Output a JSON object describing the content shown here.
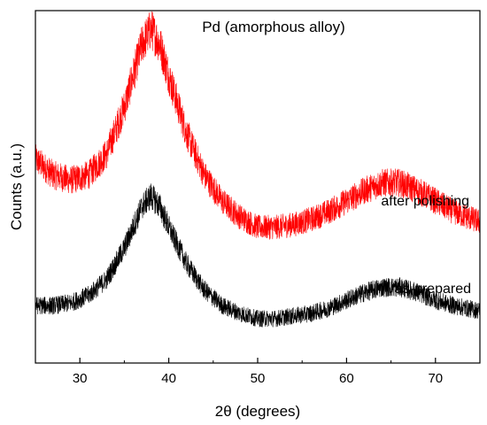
{
  "chart_data": {
    "type": "line",
    "title": "Pd (amorphous alloy)",
    "xlabel": "2θ (degrees)",
    "ylabel": "Counts (a.u.)",
    "xlim": [
      25,
      75
    ],
    "xticks": [
      30,
      40,
      50,
      60,
      70
    ],
    "y_tick_labels": false,
    "grid": false,
    "legend": "inline labels",
    "series": [
      {
        "name": "after polishing",
        "color": "#ff0000",
        "x": [
          25,
          27,
          29,
          31,
          33,
          35,
          36,
          37,
          38,
          39,
          40,
          42,
          44,
          46,
          48,
          50,
          52,
          54,
          56,
          58,
          60,
          62,
          64,
          66,
          68,
          70,
          72,
          75
        ],
        "y": [
          0.78,
          0.72,
          0.7,
          0.72,
          0.8,
          0.98,
          1.1,
          1.22,
          1.28,
          1.22,
          1.1,
          0.88,
          0.72,
          0.62,
          0.56,
          0.52,
          0.52,
          0.53,
          0.55,
          0.58,
          0.62,
          0.66,
          0.69,
          0.69,
          0.66,
          0.62,
          0.58,
          0.54
        ]
      },
      {
        "name": "as-prepared",
        "color": "#000000",
        "x": [
          25,
          27,
          29,
          31,
          33,
          35,
          36,
          37,
          38,
          39,
          40,
          42,
          44,
          46,
          48,
          50,
          52,
          54,
          56,
          58,
          60,
          62,
          64,
          66,
          68,
          70,
          72,
          75
        ],
        "y": [
          0.22,
          0.22,
          0.23,
          0.26,
          0.32,
          0.44,
          0.52,
          0.6,
          0.64,
          0.6,
          0.52,
          0.38,
          0.28,
          0.22,
          0.19,
          0.17,
          0.17,
          0.18,
          0.19,
          0.21,
          0.24,
          0.27,
          0.29,
          0.29,
          0.27,
          0.24,
          0.22,
          0.2
        ]
      }
    ]
  }
}
